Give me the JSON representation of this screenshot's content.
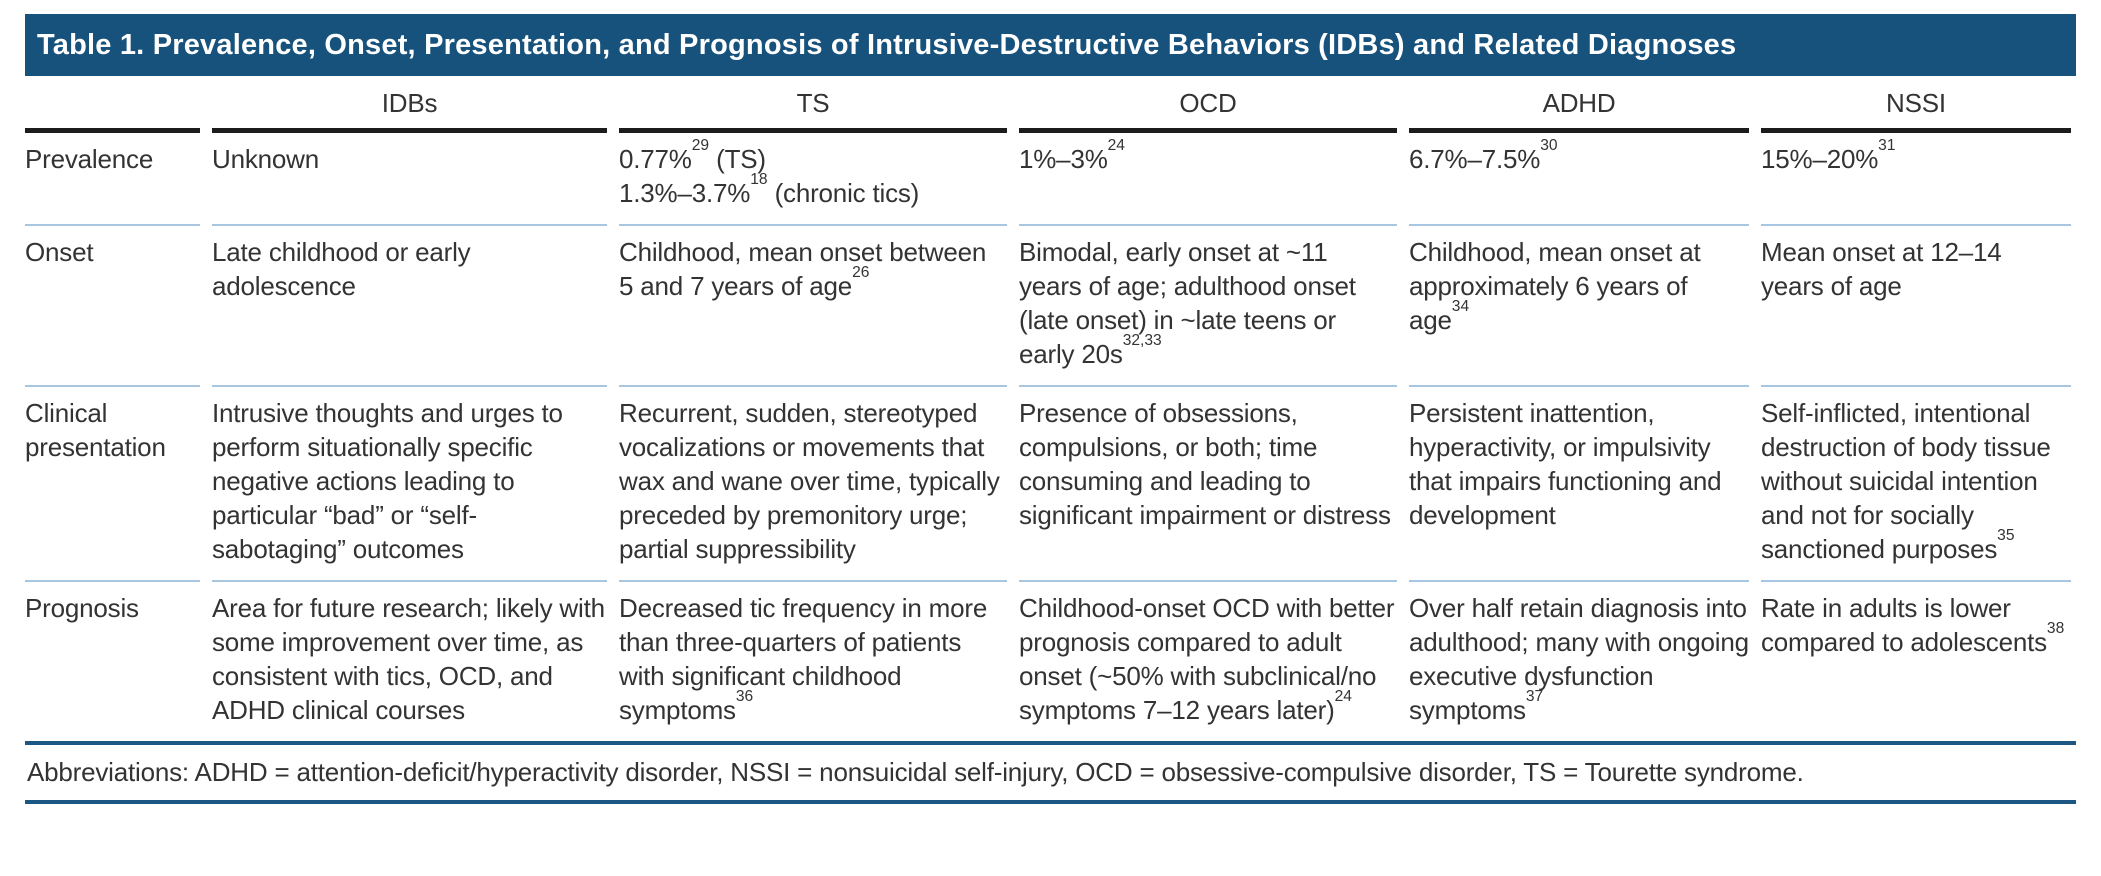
{
  "title": "Table 1. Prevalence, Onset, Presentation, and Prognosis of Intrusive-Destructive Behaviors (IDBs) and Related Diagnoses",
  "columns": {
    "c1": "IDBs",
    "c2": "TS",
    "c3": "OCD",
    "c4": "ADHD",
    "c5": "NSSI"
  },
  "rows": [
    {
      "label": "Prevalence",
      "cells": {
        "idbs": "Unknown",
        "ts": "0.77%^{29} (TS)\n1.3%–3.7%^{18} (chronic tics)",
        "ocd": "1%–3%^{24}",
        "adhd": "6.7%–7.5%^{30}",
        "nssi": "15%–20%^{31}"
      }
    },
    {
      "label": "Onset",
      "cells": {
        "idbs": "Late childhood or early adolescence",
        "ts": "Childhood, mean onset between 5 and 7 years of age^{26}",
        "ocd": "Bimodal, early onset at ~11 years of age; adulthood onset (late onset) in ~late teens or early 20s^{32,33}",
        "adhd": "Childhood, mean onset at approximately 6 years of age^{34}",
        "nssi": "Mean onset at 12–14 years of age"
      }
    },
    {
      "label": "Clinical presentation",
      "cells": {
        "idbs": "Intrusive thoughts and urges to perform situationally specific negative actions leading to particular “bad” or “self-sabotaging” outcomes",
        "ts": "Recurrent, sudden, stereotyped vocalizations or movements that wax and wane over time, typically preceded by premonitory urge; partial suppressibility",
        "ocd": "Presence of obsessions, compulsions, or both; time consuming and leading to significant impairment or distress",
        "adhd": "Persistent inattention, hyperactivity, or impulsivity that impairs functioning and development",
        "nssi": "Self-inflicted, intentional destruction of body tissue without suicidal intention and not for socially sanctioned purposes^{35}"
      }
    },
    {
      "label": "Prognosis",
      "cells": {
        "idbs": "Area for future research; likely with some improvement over time, as consistent with tics, OCD, and ADHD clinical courses",
        "ts": "Decreased tic frequency in more than three-quarters of patients with significant childhood symptoms^{36}",
        "ocd": "Childhood-onset OCD with better prognosis compared to adult onset (~50% with subclinical/no symptoms 7–12 years later)^{24}",
        "adhd": "Over half retain diagnosis into adulthood; many with ongoing executive dysfunction symptoms^{37}",
        "nssi": "Rate in adults is lower compared to adolescents^{38}"
      }
    }
  ],
  "footnote": "Abbreviations: ADHD = attention-deficit/hyperactivity disorder, NSSI = nonsuicidal self-injury, OCD = obsessive-compulsive disorder, TS = Tourette syndrome.",
  "colors": {
    "title_bar_bg": "#17527C",
    "title_text": "#FFFFFF",
    "header_rule": "#1C1C1C",
    "row_divider": "#A9C6E0",
    "outer_rule": "#1C5682",
    "body_text": "#333333"
  }
}
